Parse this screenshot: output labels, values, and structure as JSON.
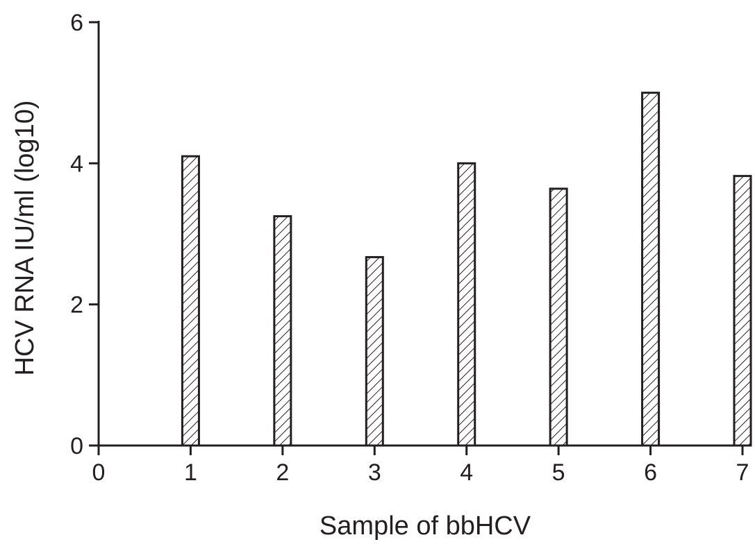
{
  "chart_data": {
    "type": "bar",
    "xlabel": "Sample of bbHCV",
    "ylabel": "HCV  RNA IU/ml (log10)",
    "x": [
      1,
      2,
      3,
      4,
      5,
      6,
      7
    ],
    "values": [
      4.1,
      3.25,
      2.67,
      4.0,
      3.64,
      5.0,
      3.82
    ],
    "xlim": [
      0,
      7
    ],
    "ylim": [
      0,
      6
    ],
    "xticks": [
      "0",
      "1",
      "2",
      "3",
      "4",
      "5",
      "6",
      "7"
    ],
    "yticks": [
      "0",
      "2",
      "4",
      "6"
    ],
    "grid": false,
    "bar_fill": "hatched",
    "colors": {
      "axis": "#231f20",
      "bar_stroke": "#231f20",
      "bar_fill": "#ffffff"
    }
  }
}
